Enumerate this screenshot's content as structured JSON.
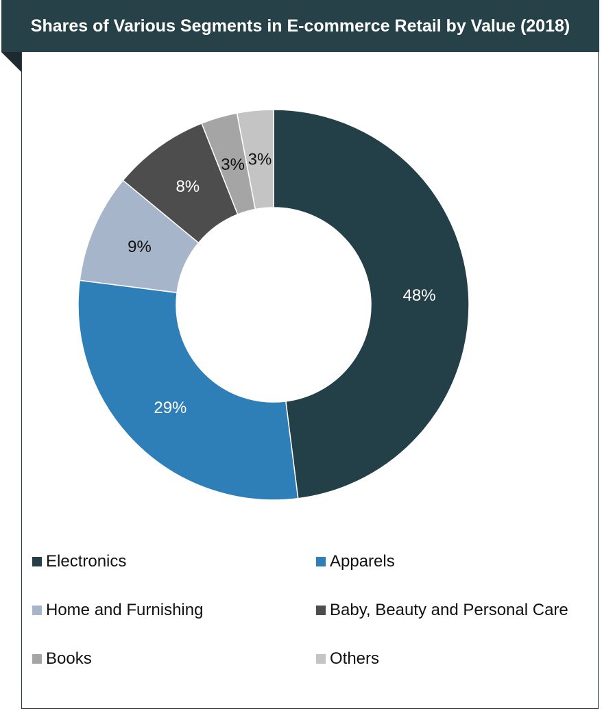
{
  "header": {
    "title": "Shares of Various Segments in E-commerce Retail by Value (2018)"
  },
  "chart_data": {
    "type": "pie",
    "donut": true,
    "title": "Shares of Various Segments in E-commerce Retail by Value (2018)",
    "categories": [
      "Electronics",
      "Apparels",
      "Home and Furnishing",
      "Baby, Beauty and Personal Care",
      "Books",
      "Others"
    ],
    "values": [
      48,
      29,
      9,
      8,
      3,
      3
    ],
    "labels": [
      "48%",
      "29%",
      "9%",
      "8%",
      "3%",
      "3%"
    ],
    "colors": [
      "#233f47",
      "#2e7fb8",
      "#a6b5c9",
      "#4d4d4d",
      "#a5a5a5",
      "#c4c4c4"
    ],
    "label_colors": [
      "#ffffff",
      "#ffffff",
      "#111111",
      "#ffffff",
      "#111111",
      "#111111"
    ],
    "legend_position": "bottom"
  }
}
